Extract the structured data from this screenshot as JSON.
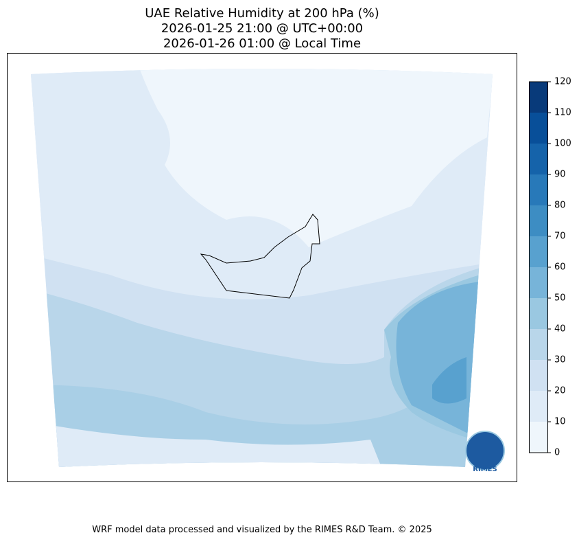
{
  "header": {
    "title_lines": [
      "UAE Relative Humidity at 200 hPa (%)",
      "2026-01-25 21:00 @ UTC+00:00",
      "2026-01-26 01:00 @ Local Time"
    ]
  },
  "colorbar": {
    "levels": [
      0,
      10,
      20,
      30,
      40,
      50,
      60,
      70,
      80,
      90,
      100,
      110,
      120
    ],
    "colors": [
      "#eff6fc",
      "#dfebf7",
      "#d0e1f2",
      "#b9d6ea",
      "#9ac8e1",
      "#77b4d9",
      "#58a1cf",
      "#3d8dc3",
      "#2879b9",
      "#1563aa",
      "#084f99",
      "#083a7a"
    ]
  },
  "logo": {
    "text": "RIMES"
  },
  "footer": {
    "text": "WRF model data processed and visualized by the RIMES R&D Team. © 2025"
  }
}
